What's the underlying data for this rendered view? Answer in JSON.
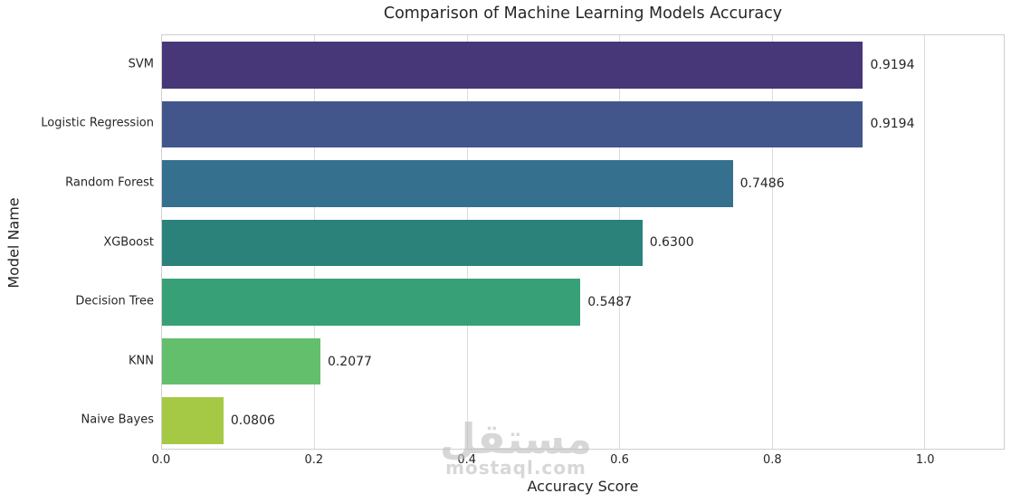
{
  "chart_data": {
    "type": "bar",
    "orientation": "horizontal",
    "title": "Comparison of Machine Learning Models Accuracy",
    "xlabel": "Accuracy Score",
    "ylabel": "Model Name",
    "categories": [
      "SVM",
      "Logistic Regression",
      "Random Forest",
      "XGBoost",
      "Decision Tree",
      "KNN",
      "Naive Bayes"
    ],
    "values": [
      0.9194,
      0.9194,
      0.7486,
      0.63,
      0.5487,
      0.2077,
      0.0806
    ],
    "value_labels": [
      "0.9194",
      "0.9194",
      "0.7486",
      "0.6300",
      "0.5487",
      "0.2077",
      "0.0806"
    ],
    "bar_colors": [
      "#473778",
      "#42568c",
      "#35708e",
      "#2a827b",
      "#38a077",
      "#64bf6d",
      "#a6c945"
    ],
    "x_ticks": [
      0.0,
      0.2,
      0.4,
      0.6,
      0.8,
      1.0
    ],
    "x_tick_labels": [
      "0.0",
      "0.2",
      "0.4",
      "0.6",
      "0.8",
      "1.0"
    ],
    "xlim": [
      0,
      1.104
    ],
    "grid": true,
    "legend_position": "none",
    "colormap": "viridis"
  },
  "watermark": {
    "text": "مستقل",
    "subtext": "mostaql.com"
  },
  "style": {
    "grid_color": "#dcdcdc",
    "spine_color": "#cfcfcf",
    "text_color": "#262626",
    "background": "#ffffff"
  }
}
